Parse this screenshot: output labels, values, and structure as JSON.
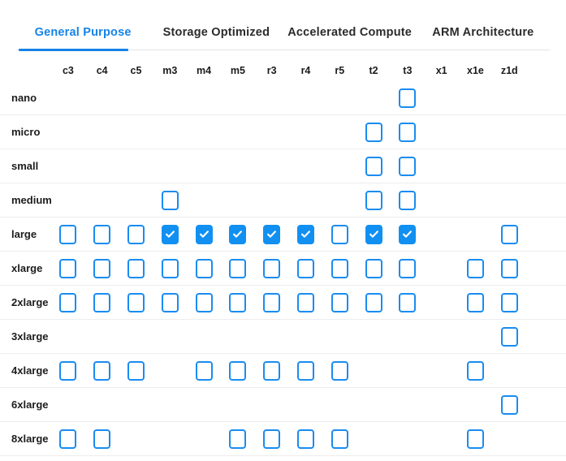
{
  "tabs": [
    {
      "label": "General Purpose",
      "active": true
    },
    {
      "label": "Storage Optimized",
      "active": false
    },
    {
      "label": "Accelerated Compute",
      "active": false
    },
    {
      "label": "ARM Architecture",
      "active": false
    }
  ],
  "colors": {
    "active_tab": "#1583e8",
    "checkbox_border": "#1a8cf0",
    "checkbox_checked_fill": "#1190f2",
    "inactive_tab_text": "#2b2b2b",
    "row_divider": "#ededed"
  },
  "icons": {
    "check": "check-icon"
  },
  "grid": {
    "columns": [
      "c3",
      "c4",
      "c5",
      "m3",
      "m4",
      "m5",
      "r3",
      "r4",
      "r5",
      "t2",
      "t3",
      "x1",
      "x1e",
      "z1d"
    ],
    "rows": [
      {
        "label": "nano",
        "cells": {
          "t3": "unchecked"
        }
      },
      {
        "label": "micro",
        "cells": {
          "t2": "unchecked",
          "t3": "unchecked"
        }
      },
      {
        "label": "small",
        "cells": {
          "t2": "unchecked",
          "t3": "unchecked"
        }
      },
      {
        "label": "medium",
        "cells": {
          "m3": "unchecked",
          "t2": "unchecked",
          "t3": "unchecked"
        }
      },
      {
        "label": "large",
        "cells": {
          "c3": "unchecked",
          "c4": "unchecked",
          "c5": "unchecked",
          "m3": "checked",
          "m4": "checked",
          "m5": "checked",
          "r3": "checked",
          "r4": "checked",
          "r5": "unchecked",
          "t2": "checked",
          "t3": "checked",
          "z1d": "unchecked"
        }
      },
      {
        "label": "xlarge",
        "cells": {
          "c3": "unchecked",
          "c4": "unchecked",
          "c5": "unchecked",
          "m3": "unchecked",
          "m4": "unchecked",
          "m5": "unchecked",
          "r3": "unchecked",
          "r4": "unchecked",
          "r5": "unchecked",
          "t2": "unchecked",
          "t3": "unchecked",
          "x1e": "unchecked",
          "z1d": "unchecked"
        }
      },
      {
        "label": "2xlarge",
        "cells": {
          "c3": "unchecked",
          "c4": "unchecked",
          "c5": "unchecked",
          "m3": "unchecked",
          "m4": "unchecked",
          "m5": "unchecked",
          "r3": "unchecked",
          "r4": "unchecked",
          "r5": "unchecked",
          "t2": "unchecked",
          "t3": "unchecked",
          "x1e": "unchecked",
          "z1d": "unchecked"
        }
      },
      {
        "label": "3xlarge",
        "cells": {
          "z1d": "unchecked"
        }
      },
      {
        "label": "4xlarge",
        "cells": {
          "c3": "unchecked",
          "c4": "unchecked",
          "c5": "unchecked",
          "m4": "unchecked",
          "m5": "unchecked",
          "r3": "unchecked",
          "r4": "unchecked",
          "r5": "unchecked",
          "x1e": "unchecked"
        }
      },
      {
        "label": "6xlarge",
        "cells": {
          "z1d": "unchecked"
        }
      },
      {
        "label": "8xlarge",
        "cells": {
          "c3": "unchecked",
          "c4": "unchecked",
          "m5": "unchecked",
          "r3": "unchecked",
          "r4": "unchecked",
          "r5": "unchecked",
          "x1e": "unchecked"
        }
      }
    ]
  }
}
